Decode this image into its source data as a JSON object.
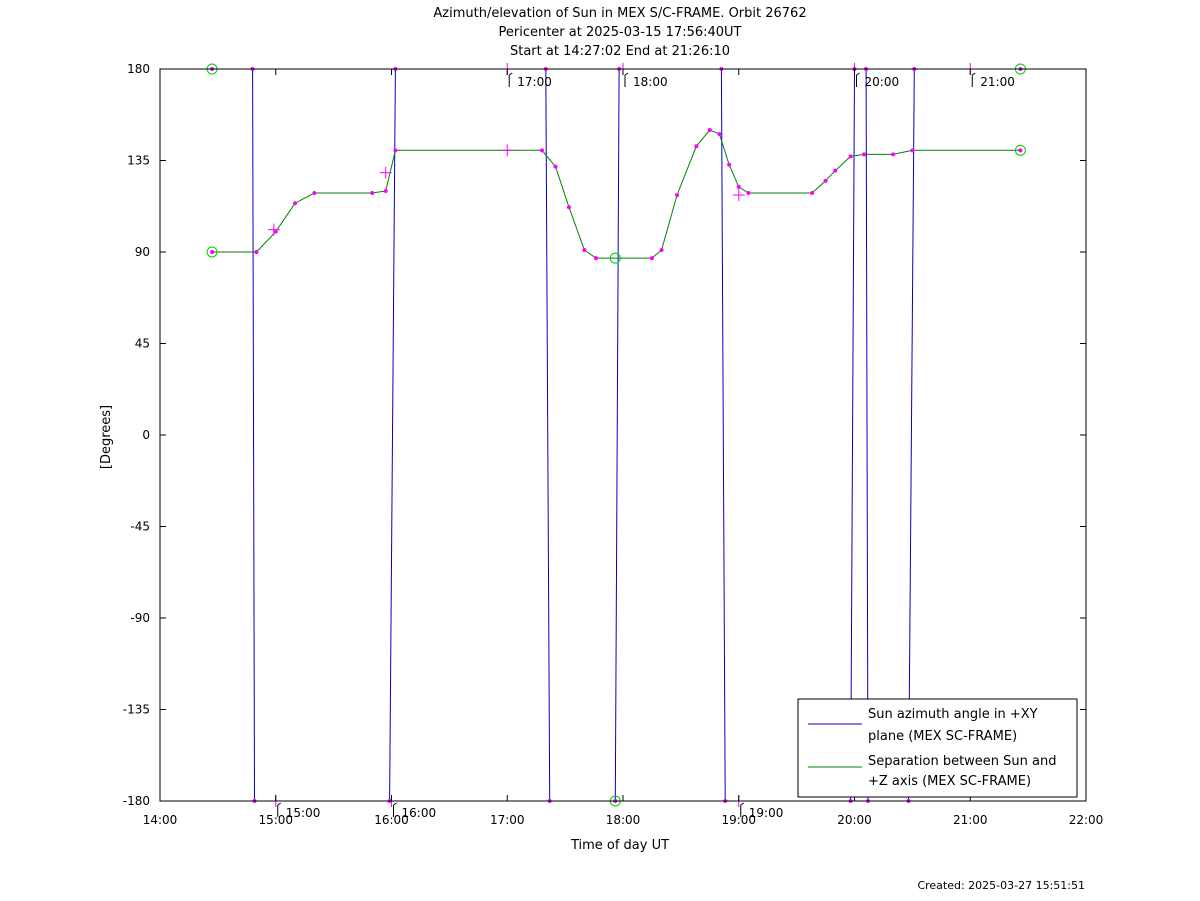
{
  "chart_data": {
    "type": "line",
    "title_lines": [
      "Azimuth/elevation of Sun in MEX S/C-FRAME.  Orbit 26762",
      "Pericenter at 2025-03-15 17:56:40UT",
      "Start at 14:27:02 End at 21:26:10"
    ],
    "xlabel": "Time of day UT",
    "ylabel": "[Degrees]",
    "xlim": [
      "14:00",
      "22:00"
    ],
    "ylim": [
      -180,
      180
    ],
    "x_ticks": [
      "14:00",
      "15:00",
      "16:00",
      "17:00",
      "18:00",
      "19:00",
      "20:00",
      "21:00",
      "22:00"
    ],
    "y_ticks": [
      "180",
      "135",
      "90",
      "45",
      "0",
      "-45",
      "-90",
      "-135",
      "-180"
    ],
    "hour_labels": [
      {
        "label": "15:00",
        "time": "15:00",
        "y": -180
      },
      {
        "label": "16:00",
        "time": "16:00",
        "y": -180
      },
      {
        "label": "17:00",
        "time": "17:00",
        "y": 180
      },
      {
        "label": "18:00",
        "time": "18:00",
        "y": 180
      },
      {
        "label": "19:00",
        "time": "19:00",
        "y": -180
      },
      {
        "label": "20:00",
        "time": "20:00",
        "y": 180
      },
      {
        "label": "21:00",
        "time": "21:00",
        "y": 180
      }
    ],
    "series": [
      {
        "name": "Sun azimuth angle in +XY plane (MEX SC-FRAME)",
        "legend_lines": [
          "Sun azimuth angle in +XY",
          "plane (MEX SC-FRAME)"
        ],
        "color": "#0000cc",
        "points": [
          [
            "14:27",
            180
          ],
          [
            "14:48",
            180
          ],
          [
            "14:49",
            -180
          ],
          [
            "15:59",
            -180
          ],
          [
            "16:02",
            180
          ],
          [
            "17:20",
            180
          ],
          [
            "17:22",
            -180
          ],
          [
            "17:56",
            -180
          ],
          [
            "17:58",
            180
          ],
          [
            "18:51",
            180
          ],
          [
            "18:53",
            -180
          ],
          [
            "19:58",
            -180
          ],
          [
            "20:00",
            180
          ],
          [
            "20:06",
            180
          ],
          [
            "20:07",
            -180
          ],
          [
            "20:28",
            -180
          ],
          [
            "20:31",
            180
          ],
          [
            "21:26",
            180
          ]
        ]
      },
      {
        "name": "Separation between Sun and +Z axis (MEX SC-FRAME)",
        "legend_lines": [
          "Separation between Sun and",
          "+Z axis (MEX SC-FRAME)"
        ],
        "color": "#008000",
        "points": [
          [
            "14:27",
            90
          ],
          [
            "14:50",
            90
          ],
          [
            "15:00",
            100
          ],
          [
            "15:10",
            114
          ],
          [
            "15:20",
            119
          ],
          [
            "15:50",
            119
          ],
          [
            "15:57",
            120
          ],
          [
            "16:02",
            140
          ],
          [
            "17:18",
            140
          ],
          [
            "17:25",
            132
          ],
          [
            "17:32",
            112
          ],
          [
            "17:40",
            91
          ],
          [
            "17:46",
            87
          ],
          [
            "18:15",
            87
          ],
          [
            "18:20",
            91
          ],
          [
            "18:28",
            118
          ],
          [
            "18:38",
            142
          ],
          [
            "18:45",
            150
          ],
          [
            "18:50",
            148
          ],
          [
            "18:55",
            133
          ],
          [
            "19:00",
            122
          ],
          [
            "19:05",
            119
          ],
          [
            "19:38",
            119
          ],
          [
            "19:45",
            125
          ],
          [
            "19:50",
            130
          ],
          [
            "19:58",
            137
          ],
          [
            "20:05",
            138
          ],
          [
            "20:20",
            138
          ],
          [
            "20:30",
            140
          ],
          [
            "21:26",
            140
          ]
        ]
      }
    ],
    "markers": {
      "color": "#ff00ff",
      "circle_color": "#00cc00",
      "plus_points": [
        [
          "14:59",
          101
        ],
        [
          "15:57",
          129
        ],
        [
          "19:00",
          118
        ],
        [
          "17:00",
          140
        ],
        [
          "17:00",
          180
        ],
        [
          "18:00",
          180
        ],
        [
          "15:00",
          -180
        ],
        [
          "16:00",
          -180
        ],
        [
          "19:00",
          -180
        ],
        [
          "21:00",
          180
        ],
        [
          "20:00",
          180
        ]
      ],
      "circles": [
        [
          "14:27",
          180
        ],
        [
          "14:27",
          90
        ],
        [
          "21:26",
          180
        ],
        [
          "21:26",
          140
        ],
        [
          "17:56",
          87
        ],
        [
          "17:56",
          -180
        ]
      ]
    },
    "legend_position": "bottom-right",
    "grid": false
  },
  "footer": {
    "created": "Created: 2025-03-27 15:51:51"
  }
}
